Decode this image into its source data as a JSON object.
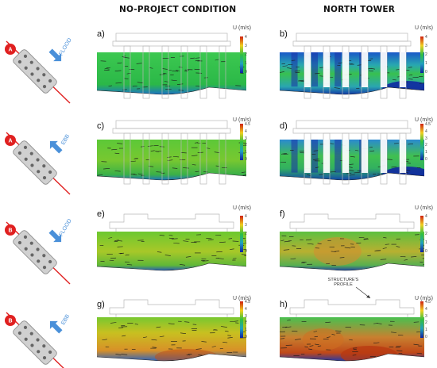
{
  "headers": {
    "left": "NO-PROJECT CONDITION",
    "right": "NORTH TOWER"
  },
  "rows": [
    {
      "section": "A",
      "tide": "FLOOD",
      "arrow_dir": "down"
    },
    {
      "section": "A",
      "tide": "EBB",
      "arrow_dir": "up"
    },
    {
      "section": "B",
      "tide": "FLOOD",
      "arrow_dir": "down"
    },
    {
      "section": "B",
      "tide": "EBB",
      "arrow_dir": "up"
    }
  ],
  "panels": [
    {
      "label": "a)",
      "colorbar_title": "U (m/s)",
      "ticks": [
        "4",
        "3",
        "2",
        "1",
        "0"
      ]
    },
    {
      "label": "b)",
      "colorbar_title": "U (m/s)",
      "ticks": [
        "4",
        "3",
        "2",
        "1",
        "0"
      ]
    },
    {
      "label": "c)",
      "colorbar_title": "U (m/s)",
      "ticks": [
        "4.5",
        "4",
        "3",
        "2",
        "1",
        "0"
      ]
    },
    {
      "label": "d)",
      "colorbar_title": "U (m/s)",
      "ticks": [
        "4.5",
        "4",
        "3",
        "2",
        "1",
        "0"
      ]
    },
    {
      "label": "e)",
      "colorbar_title": "U (m/s)",
      "ticks": [
        "4",
        "3",
        "2",
        "1",
        "0"
      ]
    },
    {
      "label": "f)",
      "colorbar_title": "U (m/s)",
      "ticks": [
        "4",
        "3",
        "2",
        "1",
        "0"
      ]
    },
    {
      "label": "g)",
      "colorbar_title": "U (m/s)",
      "ticks": [
        "4.5",
        "4",
        "3",
        "2",
        "1",
        "0"
      ]
    },
    {
      "label": "h)",
      "colorbar_title": "U (m/s)",
      "ticks": [
        "4.5",
        "4",
        "3",
        "2",
        "1",
        "0"
      ]
    }
  ],
  "annotation": {
    "line1": "STRUCTURE'S",
    "line2": "PROFILE"
  },
  "colors": {
    "marker": "#e02020",
    "tide_arrow": "#4a90d9",
    "section_line": "#e02020",
    "field_low": "#1a3fbf",
    "field_mid": "#2fbf4a",
    "field_high": "#e0d030",
    "field_peak": "#d04010"
  }
}
